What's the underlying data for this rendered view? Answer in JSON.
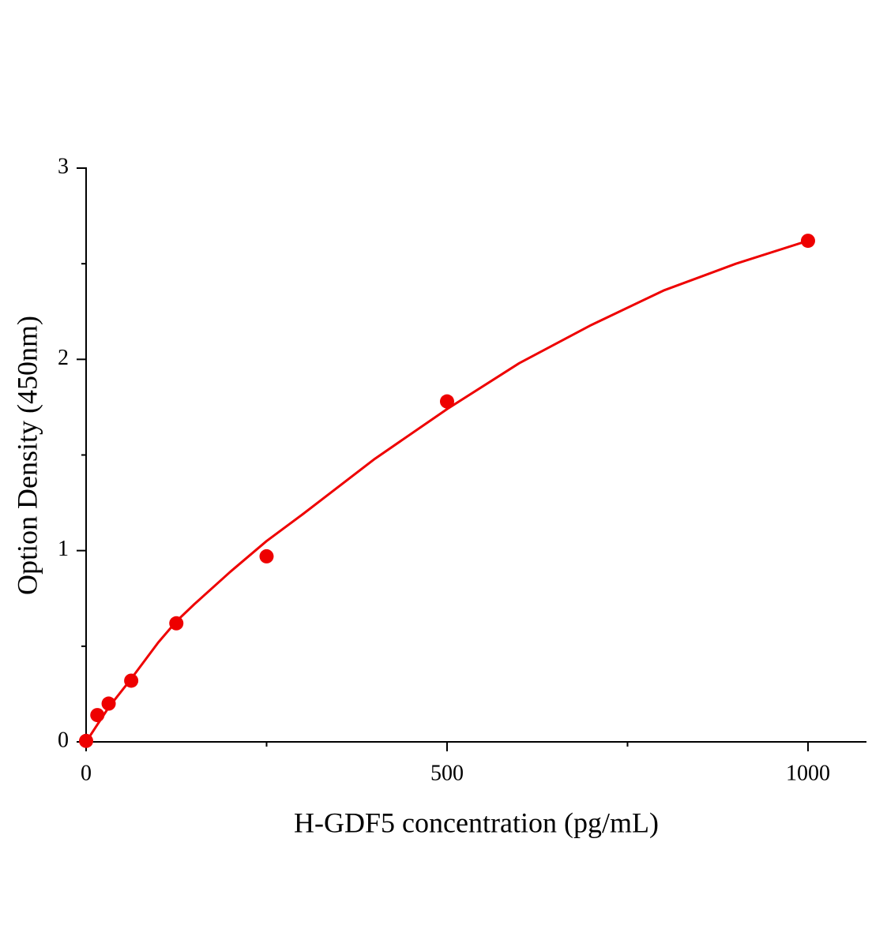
{
  "chart_data": {
    "type": "scatter",
    "x_label": "H-GDF5 concentration (pg/mL)",
    "y_label": "Option Density (450nm)",
    "series": [
      {
        "color": "#ee0000",
        "x": [
          0,
          15.6,
          31.25,
          62.5,
          125,
          250,
          500,
          1000
        ],
        "values": [
          0.005,
          0.14,
          0.2,
          0.32,
          0.62,
          0.97,
          1.78,
          2.62
        ]
      },
      {
        "type": "line",
        "color": "#ee0000",
        "x": [
          0,
          15.6,
          31.25,
          50,
          62.5,
          100,
          125,
          150,
          200,
          250,
          300,
          400,
          500,
          600,
          700,
          800,
          900,
          1000
        ],
        "values": [
          0,
          0.09,
          0.18,
          0.27,
          0.33,
          0.52,
          0.63,
          0.72,
          0.89,
          1.05,
          1.19,
          1.48,
          1.74,
          1.98,
          2.18,
          2.36,
          2.5,
          2.62
        ]
      }
    ],
    "xlim": [
      0,
      1081
    ],
    "xticks": [
      0,
      500,
      1000
    ],
    "xminor": [
      250,
      750
    ],
    "ylim": [
      0,
      3
    ],
    "yticks": [
      0,
      1,
      2,
      3
    ],
    "yminor": [
      0.5,
      1.5,
      2.5
    ]
  }
}
